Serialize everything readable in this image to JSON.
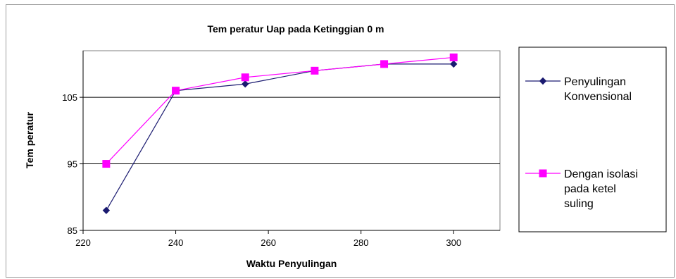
{
  "chart_data": {
    "type": "line",
    "title": "Tem peratur Uap pada Ketinggian 0 m",
    "xlabel": "Waktu Penyulingan",
    "ylabel": "Tem peratur",
    "xlim": [
      220,
      310
    ],
    "ylim": [
      85,
      112
    ],
    "xticks": [
      220,
      240,
      260,
      280,
      300
    ],
    "yticks": [
      85,
      95,
      105
    ],
    "grid": "horizontal",
    "legend_position": "right",
    "series": [
      {
        "name": "Penyulingan Konvensional",
        "legend_lines": [
          "Penyulingan",
          "Konvensional"
        ],
        "color": "#1a1a70",
        "marker": "diamond",
        "x": [
          225,
          240,
          255,
          270,
          285,
          300
        ],
        "y": [
          88,
          106,
          107,
          109,
          110,
          110
        ]
      },
      {
        "name": "Dengan isolasi pada ketel suling",
        "legend_lines": [
          "Dengan isolasi",
          "pada ketel",
          "suling"
        ],
        "color": "#ff00ff",
        "marker": "square",
        "x": [
          225,
          240,
          255,
          270,
          285,
          300
        ],
        "y": [
          95,
          106,
          108,
          109,
          110,
          111
        ]
      }
    ]
  }
}
